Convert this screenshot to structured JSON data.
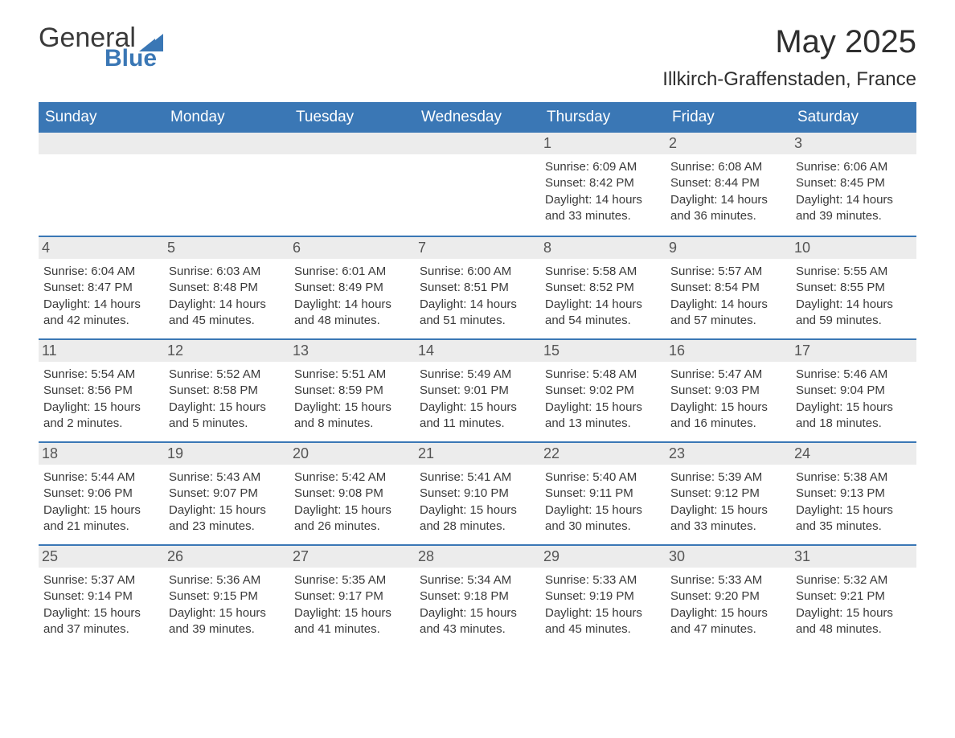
{
  "logo": {
    "word1": "General",
    "word2": "Blue",
    "brand_color": "#3a77b5",
    "text_color": "#3a3a3a"
  },
  "title": "May 2025",
  "location": "Illkirch-Graffenstaden, France",
  "colors": {
    "header_bg": "#3a77b5",
    "header_text": "#ffffff",
    "daynum_bg": "#ececec",
    "daynum_text": "#555555",
    "body_text": "#3a3a3a",
    "week_border": "#3a77b5",
    "page_bg": "#ffffff"
  },
  "fonts": {
    "title_size": 40,
    "location_size": 24,
    "header_size": 19,
    "daynum_size": 18,
    "body_size": 15
  },
  "day_headers": [
    "Sunday",
    "Monday",
    "Tuesday",
    "Wednesday",
    "Thursday",
    "Friday",
    "Saturday"
  ],
  "weeks": [
    [
      {
        "blank": true
      },
      {
        "blank": true
      },
      {
        "blank": true
      },
      {
        "blank": true
      },
      {
        "n": "1",
        "sunrise": "Sunrise: 6:09 AM",
        "sunset": "Sunset: 8:42 PM",
        "dl1": "Daylight: 14 hours",
        "dl2": "and 33 minutes."
      },
      {
        "n": "2",
        "sunrise": "Sunrise: 6:08 AM",
        "sunset": "Sunset: 8:44 PM",
        "dl1": "Daylight: 14 hours",
        "dl2": "and 36 minutes."
      },
      {
        "n": "3",
        "sunrise": "Sunrise: 6:06 AM",
        "sunset": "Sunset: 8:45 PM",
        "dl1": "Daylight: 14 hours",
        "dl2": "and 39 minutes."
      }
    ],
    [
      {
        "n": "4",
        "sunrise": "Sunrise: 6:04 AM",
        "sunset": "Sunset: 8:47 PM",
        "dl1": "Daylight: 14 hours",
        "dl2": "and 42 minutes."
      },
      {
        "n": "5",
        "sunrise": "Sunrise: 6:03 AM",
        "sunset": "Sunset: 8:48 PM",
        "dl1": "Daylight: 14 hours",
        "dl2": "and 45 minutes."
      },
      {
        "n": "6",
        "sunrise": "Sunrise: 6:01 AM",
        "sunset": "Sunset: 8:49 PM",
        "dl1": "Daylight: 14 hours",
        "dl2": "and 48 minutes."
      },
      {
        "n": "7",
        "sunrise": "Sunrise: 6:00 AM",
        "sunset": "Sunset: 8:51 PM",
        "dl1": "Daylight: 14 hours",
        "dl2": "and 51 minutes."
      },
      {
        "n": "8",
        "sunrise": "Sunrise: 5:58 AM",
        "sunset": "Sunset: 8:52 PM",
        "dl1": "Daylight: 14 hours",
        "dl2": "and 54 minutes."
      },
      {
        "n": "9",
        "sunrise": "Sunrise: 5:57 AM",
        "sunset": "Sunset: 8:54 PM",
        "dl1": "Daylight: 14 hours",
        "dl2": "and 57 minutes."
      },
      {
        "n": "10",
        "sunrise": "Sunrise: 5:55 AM",
        "sunset": "Sunset: 8:55 PM",
        "dl1": "Daylight: 14 hours",
        "dl2": "and 59 minutes."
      }
    ],
    [
      {
        "n": "11",
        "sunrise": "Sunrise: 5:54 AM",
        "sunset": "Sunset: 8:56 PM",
        "dl1": "Daylight: 15 hours",
        "dl2": "and 2 minutes."
      },
      {
        "n": "12",
        "sunrise": "Sunrise: 5:52 AM",
        "sunset": "Sunset: 8:58 PM",
        "dl1": "Daylight: 15 hours",
        "dl2": "and 5 minutes."
      },
      {
        "n": "13",
        "sunrise": "Sunrise: 5:51 AM",
        "sunset": "Sunset: 8:59 PM",
        "dl1": "Daylight: 15 hours",
        "dl2": "and 8 minutes."
      },
      {
        "n": "14",
        "sunrise": "Sunrise: 5:49 AM",
        "sunset": "Sunset: 9:01 PM",
        "dl1": "Daylight: 15 hours",
        "dl2": "and 11 minutes."
      },
      {
        "n": "15",
        "sunrise": "Sunrise: 5:48 AM",
        "sunset": "Sunset: 9:02 PM",
        "dl1": "Daylight: 15 hours",
        "dl2": "and 13 minutes."
      },
      {
        "n": "16",
        "sunrise": "Sunrise: 5:47 AM",
        "sunset": "Sunset: 9:03 PM",
        "dl1": "Daylight: 15 hours",
        "dl2": "and 16 minutes."
      },
      {
        "n": "17",
        "sunrise": "Sunrise: 5:46 AM",
        "sunset": "Sunset: 9:04 PM",
        "dl1": "Daylight: 15 hours",
        "dl2": "and 18 minutes."
      }
    ],
    [
      {
        "n": "18",
        "sunrise": "Sunrise: 5:44 AM",
        "sunset": "Sunset: 9:06 PM",
        "dl1": "Daylight: 15 hours",
        "dl2": "and 21 minutes."
      },
      {
        "n": "19",
        "sunrise": "Sunrise: 5:43 AM",
        "sunset": "Sunset: 9:07 PM",
        "dl1": "Daylight: 15 hours",
        "dl2": "and 23 minutes."
      },
      {
        "n": "20",
        "sunrise": "Sunrise: 5:42 AM",
        "sunset": "Sunset: 9:08 PM",
        "dl1": "Daylight: 15 hours",
        "dl2": "and 26 minutes."
      },
      {
        "n": "21",
        "sunrise": "Sunrise: 5:41 AM",
        "sunset": "Sunset: 9:10 PM",
        "dl1": "Daylight: 15 hours",
        "dl2": "and 28 minutes."
      },
      {
        "n": "22",
        "sunrise": "Sunrise: 5:40 AM",
        "sunset": "Sunset: 9:11 PM",
        "dl1": "Daylight: 15 hours",
        "dl2": "and 30 minutes."
      },
      {
        "n": "23",
        "sunrise": "Sunrise: 5:39 AM",
        "sunset": "Sunset: 9:12 PM",
        "dl1": "Daylight: 15 hours",
        "dl2": "and 33 minutes."
      },
      {
        "n": "24",
        "sunrise": "Sunrise: 5:38 AM",
        "sunset": "Sunset: 9:13 PM",
        "dl1": "Daylight: 15 hours",
        "dl2": "and 35 minutes."
      }
    ],
    [
      {
        "n": "25",
        "sunrise": "Sunrise: 5:37 AM",
        "sunset": "Sunset: 9:14 PM",
        "dl1": "Daylight: 15 hours",
        "dl2": "and 37 minutes."
      },
      {
        "n": "26",
        "sunrise": "Sunrise: 5:36 AM",
        "sunset": "Sunset: 9:15 PM",
        "dl1": "Daylight: 15 hours",
        "dl2": "and 39 minutes."
      },
      {
        "n": "27",
        "sunrise": "Sunrise: 5:35 AM",
        "sunset": "Sunset: 9:17 PM",
        "dl1": "Daylight: 15 hours",
        "dl2": "and 41 minutes."
      },
      {
        "n": "28",
        "sunrise": "Sunrise: 5:34 AM",
        "sunset": "Sunset: 9:18 PM",
        "dl1": "Daylight: 15 hours",
        "dl2": "and 43 minutes."
      },
      {
        "n": "29",
        "sunrise": "Sunrise: 5:33 AM",
        "sunset": "Sunset: 9:19 PM",
        "dl1": "Daylight: 15 hours",
        "dl2": "and 45 minutes."
      },
      {
        "n": "30",
        "sunrise": "Sunrise: 5:33 AM",
        "sunset": "Sunset: 9:20 PM",
        "dl1": "Daylight: 15 hours",
        "dl2": "and 47 minutes."
      },
      {
        "n": "31",
        "sunrise": "Sunrise: 5:32 AM",
        "sunset": "Sunset: 9:21 PM",
        "dl1": "Daylight: 15 hours",
        "dl2": "and 48 minutes."
      }
    ]
  ]
}
